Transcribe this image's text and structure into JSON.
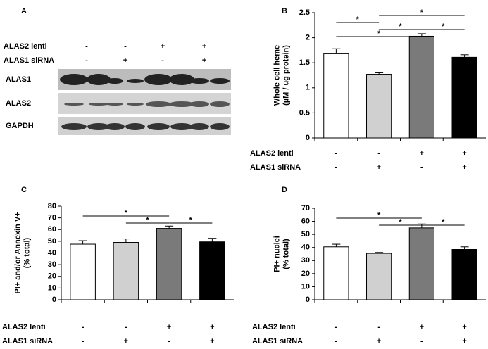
{
  "blot": {
    "label": "A",
    "conditions": [
      {
        "name": "ALAS2 lenti",
        "values": [
          "-",
          "-",
          "+",
          "+"
        ]
      },
      {
        "name": "ALAS1 siRNA",
        "values": [
          "-",
          "+",
          "-",
          "+"
        ]
      }
    ],
    "rows": [
      "ALAS1",
      "ALAS2",
      "GAPDH"
    ]
  },
  "chart_data": [
    {
      "type": "bar",
      "label": "B",
      "ylabel": [
        "Whole cell heme",
        "(µM / ug protein)"
      ],
      "values": [
        1.68,
        1.27,
        2.03,
        1.61
      ],
      "errors": [
        0.1,
        0.03,
        0.05,
        0.05
      ],
      "colors": [
        "#ffffff",
        "#d0d0d0",
        "#7a7a7a",
        "#000000"
      ],
      "ylim": [
        0,
        2.5
      ],
      "yticks": [
        0,
        0.5,
        1,
        1.5,
        2,
        2.5
      ],
      "conditions": [
        {
          "name": "ALAS2 lenti",
          "values": [
            "-",
            "-",
            "+",
            "+"
          ]
        },
        {
          "name": "ALAS1 siRNA",
          "values": [
            "-",
            "+",
            "-",
            "+"
          ]
        }
      ],
      "significance": [
        {
          "from": 0,
          "to": 1,
          "label": "*"
        },
        {
          "from": 1,
          "to": 3,
          "label": "*"
        },
        {
          "from": 1,
          "to": 2,
          "label": "*"
        },
        {
          "from": 2,
          "to": 3,
          "label": "*"
        },
        {
          "from": 0,
          "to": 2,
          "label": "*"
        }
      ]
    },
    {
      "type": "bar",
      "label": "C",
      "ylabel": [
        "PI+ and/or Annexin V+",
        "(% total)"
      ],
      "values": [
        47.5,
        49,
        61,
        49.5
      ],
      "errors": [
        3,
        3,
        2,
        3
      ],
      "colors": [
        "#ffffff",
        "#d0d0d0",
        "#7a7a7a",
        "#000000"
      ],
      "ylim": [
        0,
        80
      ],
      "yticks": [
        0,
        10,
        20,
        30,
        40,
        50,
        60,
        70,
        80
      ],
      "conditions": [
        {
          "name": "ALAS2 lenti",
          "values": [
            "-",
            "-",
            "+",
            "+"
          ]
        },
        {
          "name": "ALAS1 siRNA",
          "values": [
            "-",
            "+",
            "-",
            "+"
          ]
        }
      ],
      "significance": [
        {
          "from": 0,
          "to": 2,
          "label": "*"
        },
        {
          "from": 1,
          "to": 2,
          "label": "*"
        },
        {
          "from": 2,
          "to": 3,
          "label": "*"
        }
      ]
    },
    {
      "type": "bar",
      "label": "D",
      "ylabel": [
        "PI+ nuclei",
        "(% total)"
      ],
      "values": [
        40.5,
        35.5,
        55,
        38.5
      ],
      "errors": [
        2,
        0.7,
        3,
        2
      ],
      "colors": [
        "#ffffff",
        "#d0d0d0",
        "#7a7a7a",
        "#000000"
      ],
      "ylim": [
        0,
        70
      ],
      "yticks": [
        0,
        10,
        20,
        30,
        40,
        50,
        60,
        70
      ],
      "conditions": [
        {
          "name": "ALAS2 lenti",
          "values": [
            "-",
            "-",
            "+",
            "+"
          ]
        },
        {
          "name": "ALAS1 siRNA",
          "values": [
            "-",
            "+",
            "-",
            "+"
          ]
        }
      ],
      "significance": [
        {
          "from": 0,
          "to": 2,
          "label": "*"
        },
        {
          "from": 1,
          "to": 2,
          "label": "*"
        },
        {
          "from": 2,
          "to": 3,
          "label": "*"
        }
      ]
    }
  ]
}
